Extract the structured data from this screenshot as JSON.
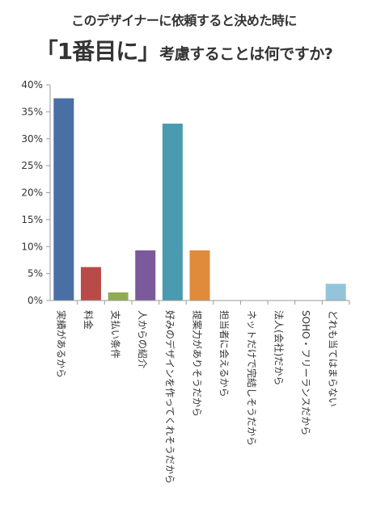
{
  "title": {
    "line1": "このデザイナーに依頼すると決めた時に",
    "line2_emphasis": "「1番目に」",
    "line2_rest": "考慮することは何ですか?"
  },
  "colors": {
    "axis": "#9a9a9a",
    "text": "#333333"
  },
  "chart_data": {
    "type": "bar",
    "title": "このデザイナーに依頼すると決めた時に「1番目に」考慮することは何ですか?",
    "xlabel": "",
    "ylabel": "",
    "ylim": [
      0,
      40
    ],
    "yticks": [
      "0%",
      "5%",
      "10%",
      "15%",
      "20%",
      "25%",
      "30%",
      "35%",
      "40%"
    ],
    "grid": false,
    "legend": "none",
    "categories": [
      "実績があるから",
      "料金",
      "支払い条件",
      "人からの紹介",
      "好みのデザインを作ってくれそうだから",
      "提案力がありそうだから",
      "担当者に会えるから",
      "ネットだけで完結しそうだから",
      "法人(会社)だから",
      "SOHO・フリーランスだから",
      "どれも当てはまらない"
    ],
    "values": [
      37.5,
      6.2,
      1.5,
      9.3,
      32.8,
      9.3,
      0,
      0,
      0,
      0,
      3.1
    ],
    "bar_colors": [
      "#4a6fa5",
      "#b84a48",
      "#8fac54",
      "#7a5a9a",
      "#4a9ab0",
      "#e08a3c",
      "#4a6fa5",
      "#4a6fa5",
      "#4a6fa5",
      "#4a6fa5",
      "#94c4da"
    ]
  }
}
